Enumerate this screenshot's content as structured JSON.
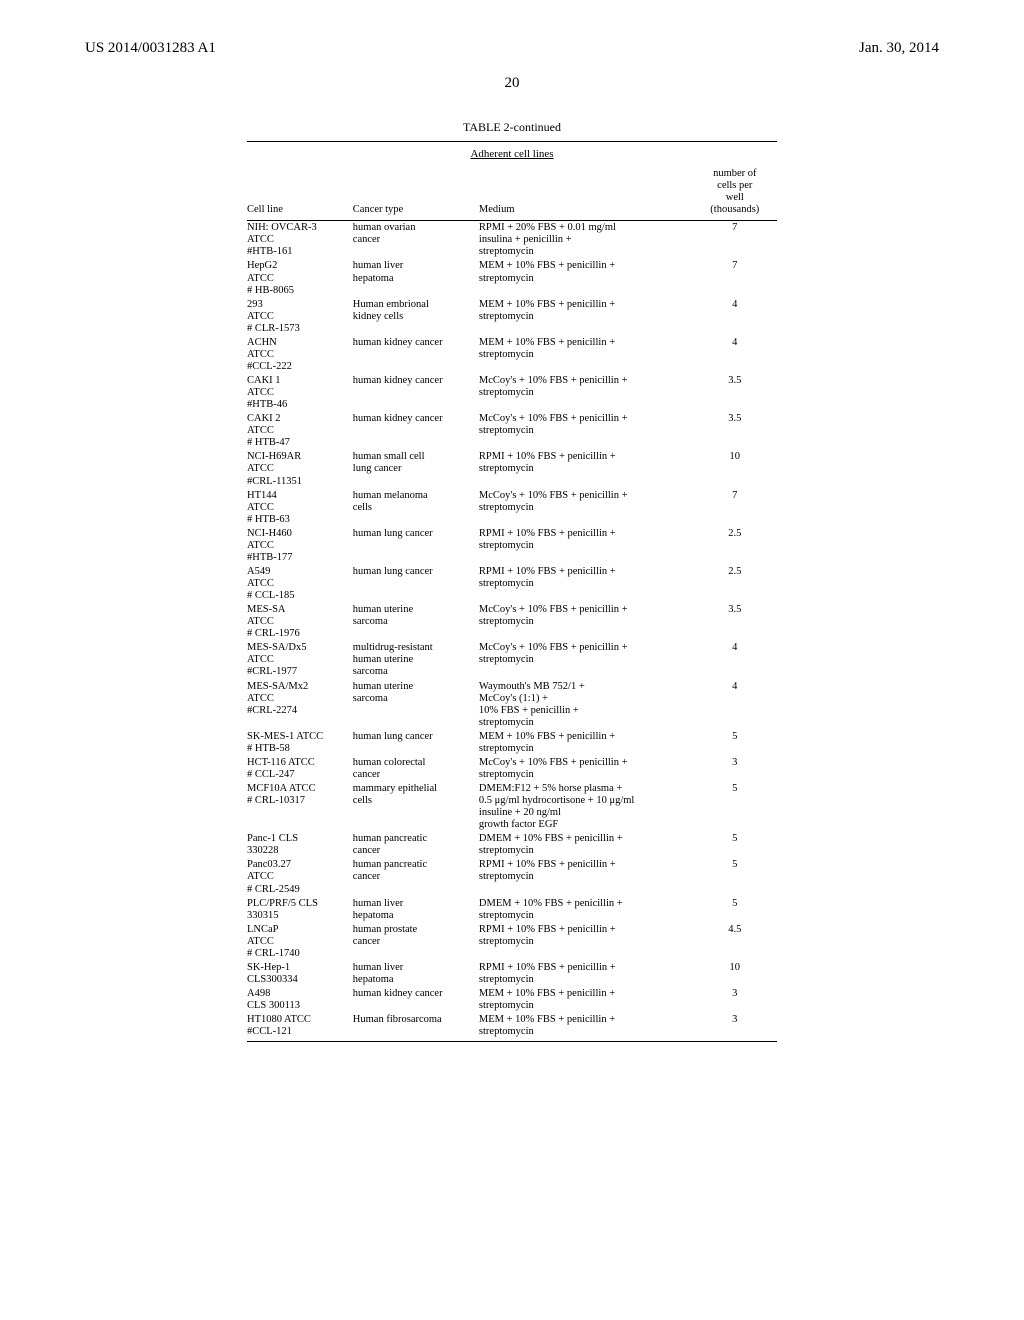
{
  "header": {
    "left": "US 2014/0031283 A1",
    "right": "Jan. 30, 2014"
  },
  "page_number": "20",
  "table": {
    "title": "TABLE 2-continued",
    "subcaption": "Adherent cell lines",
    "columns": {
      "cell_line": "Cell line",
      "cancer_type": "Cancer type",
      "medium": "Medium",
      "num_header_lines": [
        "number of",
        "cells per",
        "well",
        "(thousands)"
      ]
    },
    "rows": [
      {
        "cell_line": [
          "NIH: OVCAR-3",
          "ATCC",
          "#HTB-161"
        ],
        "cancer_type": [
          "human ovarian",
          "cancer"
        ],
        "medium": [
          "RPMI + 20% FBS + 0.01 mg/ml",
          "insulina + penicillin +",
          "streptomycin"
        ],
        "num": "7"
      },
      {
        "cell_line": [
          "HepG2",
          "ATCC",
          "# HB-8065"
        ],
        "cancer_type": [
          "human liver",
          "hepatoma"
        ],
        "medium": [
          "MEM + 10% FBS + penicillin +",
          "streptomycin"
        ],
        "num": "7"
      },
      {
        "cell_line": [
          "293",
          "ATCC",
          "# CLR-1573"
        ],
        "cancer_type": [
          "Human embrional",
          "kidney cells"
        ],
        "medium": [
          "MEM + 10% FBS + penicillin +",
          "streptomycin"
        ],
        "num": "4"
      },
      {
        "cell_line": [
          "ACHN",
          "ATCC",
          "#CCL-222"
        ],
        "cancer_type": [
          "human kidney cancer"
        ],
        "medium": [
          "MEM + 10% FBS + penicillin +",
          "streptomycin"
        ],
        "num": "4"
      },
      {
        "cell_line": [
          "CAKI 1",
          "ATCC",
          "#HTB-46"
        ],
        "cancer_type": [
          "human kidney cancer"
        ],
        "medium": [
          "McCoy's + 10% FBS + penicillin +",
          "streptomycin"
        ],
        "num": "3.5"
      },
      {
        "cell_line": [
          "CAKI 2",
          "ATCC",
          "# HTB-47"
        ],
        "cancer_type": [
          "human kidney cancer"
        ],
        "medium": [
          "McCoy's + 10% FBS + penicillin +",
          "streptomycin"
        ],
        "num": "3.5"
      },
      {
        "cell_line": [
          "NCI-H69AR",
          "ATCC",
          "#CRL-11351"
        ],
        "cancer_type": [
          "human small cell",
          "lung cancer"
        ],
        "medium": [
          "RPMI + 10% FBS + penicillin +",
          "streptomycin"
        ],
        "num": "10"
      },
      {
        "cell_line": [
          "HT144",
          "ATCC",
          "# HTB-63"
        ],
        "cancer_type": [
          "human melanoma",
          "cells"
        ],
        "medium": [
          "McCoy's + 10% FBS + penicillin +",
          "streptomycin"
        ],
        "num": "7"
      },
      {
        "cell_line": [
          "NCI-H460",
          "ATCC",
          "#HTB-177"
        ],
        "cancer_type": [
          "human lung cancer"
        ],
        "medium": [
          "RPMI + 10% FBS + penicillin +",
          "streptomycin"
        ],
        "num": "2.5"
      },
      {
        "cell_line": [
          "A549",
          "ATCC",
          "# CCL-185"
        ],
        "cancer_type": [
          "human lung cancer"
        ],
        "medium": [
          "RPMI + 10% FBS + penicillin +",
          "streptomycin"
        ],
        "num": "2.5"
      },
      {
        "cell_line": [
          "MES-SA",
          "ATCC",
          "# CRL-1976"
        ],
        "cancer_type": [
          "human uterine",
          "sarcoma"
        ],
        "medium": [
          "McCoy's + 10% FBS + penicillin +",
          "streptomycin"
        ],
        "num": "3.5"
      },
      {
        "cell_line": [
          "MES-SA/Dx5",
          "ATCC",
          "#CRL-1977"
        ],
        "cancer_type": [
          "multidrug-resistant",
          "human uterine",
          "sarcoma"
        ],
        "medium": [
          "McCoy's + 10% FBS + penicillin +",
          "streptomycin"
        ],
        "num": "4"
      },
      {
        "cell_line": [
          "MES-SA/Mx2",
          "ATCC",
          "#CRL-2274"
        ],
        "cancer_type": [
          "human uterine",
          "sarcoma"
        ],
        "medium": [
          "Waymouth's MB 752/1 +",
          "McCoy's (1:1) +",
          "10% FBS + penicillin +",
          "streptomycin"
        ],
        "num": "4"
      },
      {
        "cell_line": [
          "SK-MES-1 ATCC",
          "# HTB-58"
        ],
        "cancer_type": [
          "human lung cancer"
        ],
        "medium": [
          "MEM + 10% FBS + penicillin +",
          "streptomycin"
        ],
        "num": "5"
      },
      {
        "cell_line": [
          "HCT-116 ATCC",
          "# CCL-247"
        ],
        "cancer_type": [
          "human colorectal",
          "cancer"
        ],
        "medium": [
          "McCoy's + 10% FBS + penicillin +",
          "streptomycin"
        ],
        "num": "3"
      },
      {
        "cell_line": [
          "MCF10A ATCC",
          "# CRL-10317"
        ],
        "cancer_type": [
          "mammary epithelial",
          "cells"
        ],
        "medium": [
          "DMEM:F12 + 5% horse plasma +",
          "0.5 μg/ml hydrocortisone + 10 μg/ml",
          "insuline + 20 ng/ml",
          "growth factor EGF"
        ],
        "num": "5"
      },
      {
        "cell_line": [
          "Panc-1 CLS",
          "330228"
        ],
        "cancer_type": [
          "human pancreatic",
          "cancer"
        ],
        "medium": [
          "DMEM + 10% FBS + penicillin +",
          "streptomycin"
        ],
        "num": "5"
      },
      {
        "cell_line": [
          "Panc03.27",
          "ATCC",
          "# CRL-2549"
        ],
        "cancer_type": [
          "human pancreatic",
          "cancer"
        ],
        "medium": [
          "RPMI + 10% FBS + penicillin +",
          "streptomycin"
        ],
        "num": "5"
      },
      {
        "cell_line": [
          "PLC/PRF/5 CLS",
          "330315"
        ],
        "cancer_type": [
          "human liver",
          "hepatoma"
        ],
        "medium": [
          "DMEM + 10% FBS + penicillin +",
          "streptomycin"
        ],
        "num": "5"
      },
      {
        "cell_line": [
          "LNCaP",
          "ATCC",
          "# CRL-1740"
        ],
        "cancer_type": [
          "human prostate",
          "cancer"
        ],
        "medium": [
          "RPMI + 10% FBS + penicillin +",
          "streptomycin"
        ],
        "num": "4.5"
      },
      {
        "cell_line": [
          "SK-Hep-1",
          "CLS300334"
        ],
        "cancer_type": [
          "human liver",
          "hepatoma"
        ],
        "medium": [
          "RPMI + 10% FBS + penicillin +",
          "streptomycin"
        ],
        "num": "10"
      },
      {
        "cell_line": [
          "A498",
          "CLS 300113"
        ],
        "cancer_type": [
          "human kidney cancer"
        ],
        "medium": [
          "MEM + 10% FBS + penicillin +",
          "streptomycin"
        ],
        "num": "3"
      },
      {
        "cell_line": [
          "HT1080 ATCC",
          "#CCL-121"
        ],
        "cancer_type": [
          "Human fibrosarcoma"
        ],
        "medium": [
          "MEM + 10% FBS + penicillin +",
          "streptomycin"
        ],
        "num": "3"
      }
    ]
  }
}
